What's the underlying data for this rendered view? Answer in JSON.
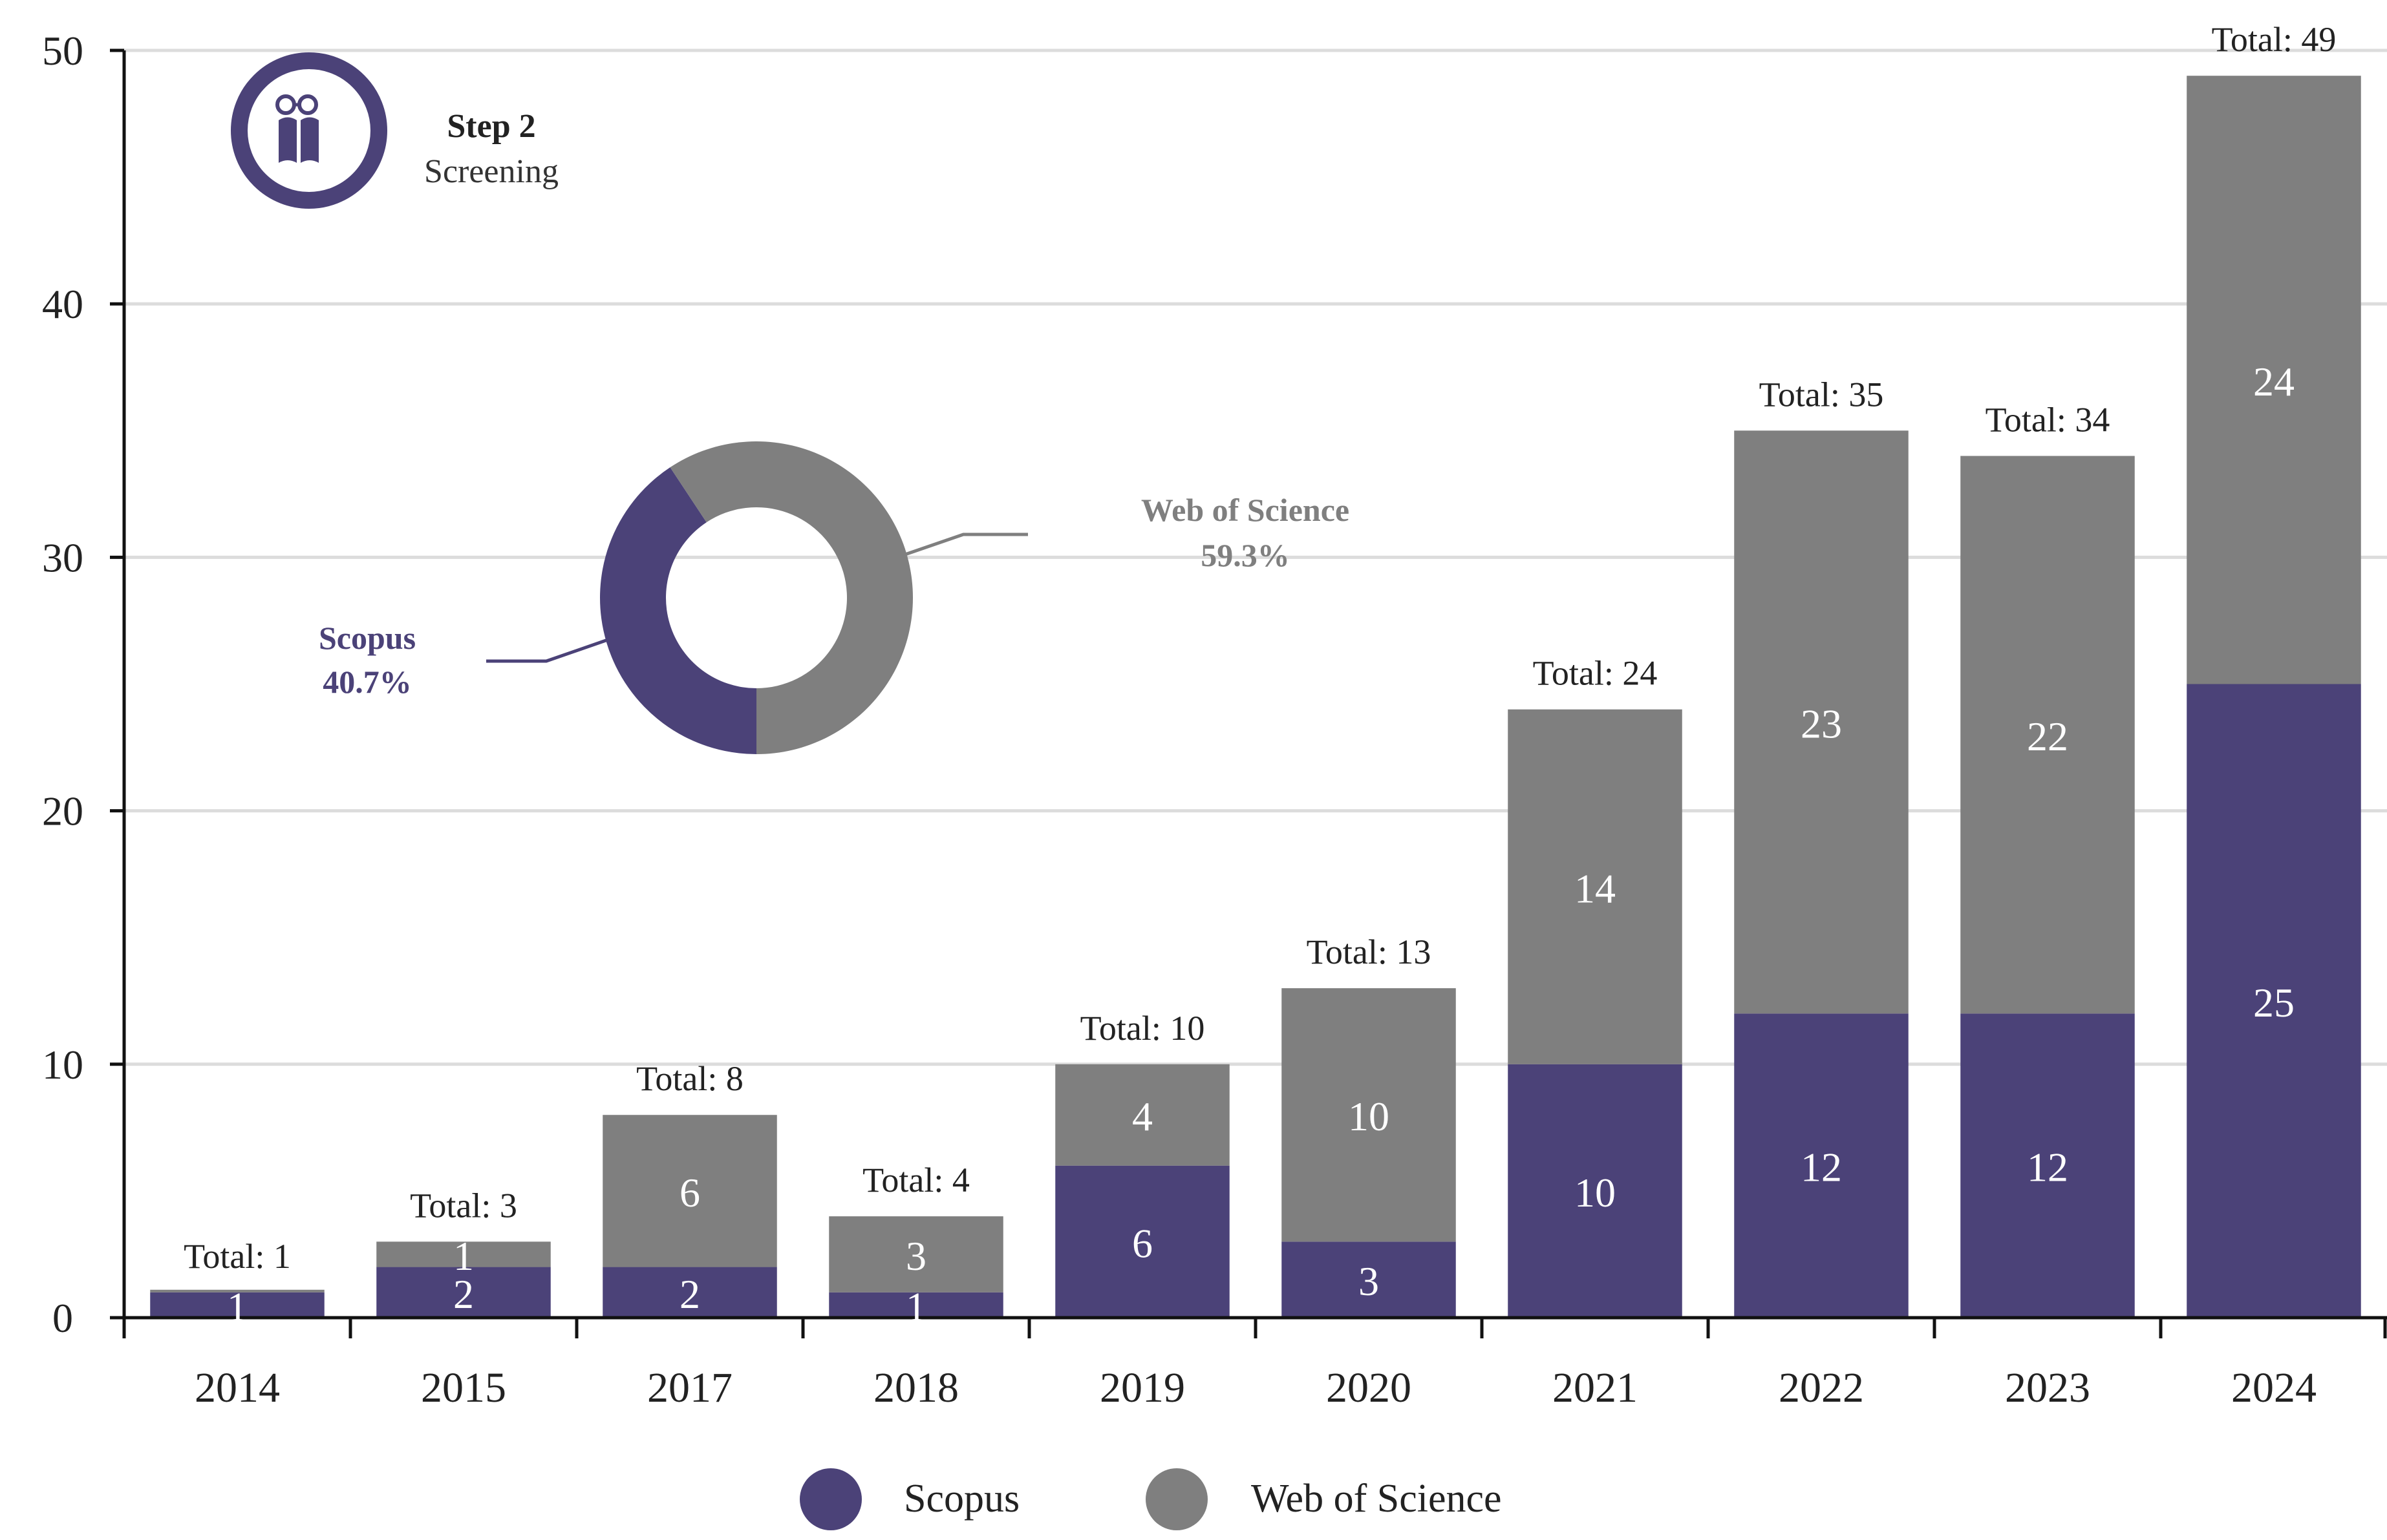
{
  "colors": {
    "scopus": "#4b4278",
    "wos": "#7f7f7f",
    "grid": "#dcdcdc",
    "axis": "#111111",
    "text": "#222222",
    "label_on_bar": "#ffffff"
  },
  "badge": {
    "step_label": "Step 2",
    "step_name": "Screening",
    "icon": "reading-book-icon"
  },
  "donut": {
    "scopus_name": "Scopus",
    "scopus_pct_label": "40.7%",
    "scopus_share": 0.407,
    "wos_name": "Web of Science",
    "wos_pct_label": "59.3%",
    "wos_share": 0.593
  },
  "legend": {
    "items": [
      {
        "name": "Scopus",
        "color_key": "scopus"
      },
      {
        "name": "Web of Science",
        "color_key": "wos"
      }
    ]
  },
  "chart_data": {
    "type": "bar",
    "stacked": true,
    "title": "",
    "xlabel": "",
    "ylabel": "",
    "ylim": [
      0,
      50
    ],
    "yticks": [
      0,
      10,
      20,
      30,
      40,
      50
    ],
    "grid": true,
    "legend_position": "bottom-center",
    "categories": [
      "2014",
      "2015",
      "2017",
      "2018",
      "2019",
      "2020",
      "2021",
      "2022",
      "2023",
      "2024"
    ],
    "series": [
      {
        "name": "Scopus",
        "values": [
          1,
          2,
          2,
          1,
          6,
          3,
          10,
          12,
          12,
          25
        ]
      },
      {
        "name": "Web of Science",
        "values": [
          0,
          1,
          6,
          3,
          4,
          10,
          14,
          23,
          22,
          24
        ]
      }
    ],
    "totals": [
      1,
      3,
      8,
      4,
      10,
      13,
      24,
      35,
      34,
      49
    ],
    "total_prefix": "Total: "
  }
}
